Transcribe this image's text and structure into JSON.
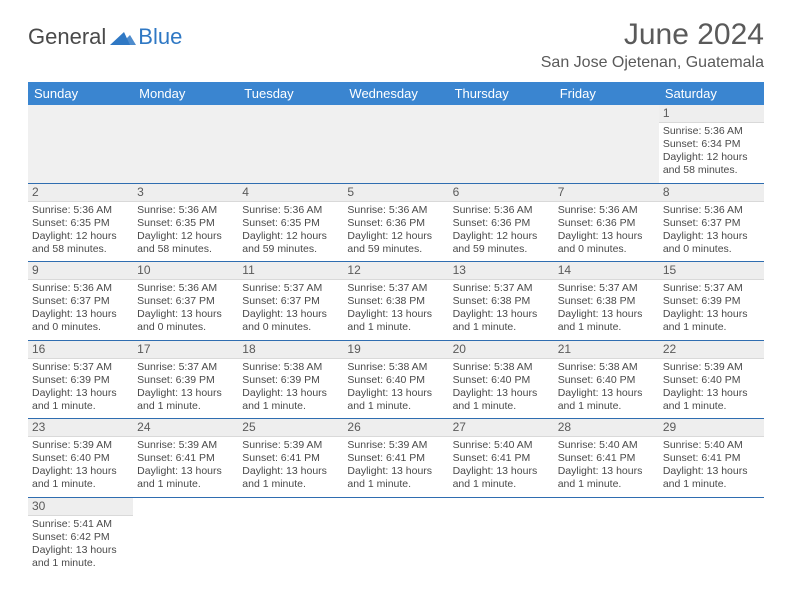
{
  "logo": {
    "text1": "General",
    "text2": "Blue"
  },
  "title": "June 2024",
  "location": "San Jose Ojetenan, Guatemala",
  "colors": {
    "header_bg": "#3a85d0",
    "header_text": "#ffffff",
    "daynum_bg": "#eeeeee",
    "row_divider": "#2f6db0",
    "text": "#4a4a4a",
    "title_text": "#5a5a5a"
  },
  "weekdays": [
    "Sunday",
    "Monday",
    "Tuesday",
    "Wednesday",
    "Thursday",
    "Friday",
    "Saturday"
  ],
  "weeks": [
    [
      null,
      null,
      null,
      null,
      null,
      null,
      {
        "n": "1",
        "sr": "5:36 AM",
        "ss": "6:34 PM",
        "dl": "12 hours and 58 minutes."
      }
    ],
    [
      {
        "n": "2",
        "sr": "5:36 AM",
        "ss": "6:35 PM",
        "dl": "12 hours and 58 minutes."
      },
      {
        "n": "3",
        "sr": "5:36 AM",
        "ss": "6:35 PM",
        "dl": "12 hours and 58 minutes."
      },
      {
        "n": "4",
        "sr": "5:36 AM",
        "ss": "6:35 PM",
        "dl": "12 hours and 59 minutes."
      },
      {
        "n": "5",
        "sr": "5:36 AM",
        "ss": "6:36 PM",
        "dl": "12 hours and 59 minutes."
      },
      {
        "n": "6",
        "sr": "5:36 AM",
        "ss": "6:36 PM",
        "dl": "12 hours and 59 minutes."
      },
      {
        "n": "7",
        "sr": "5:36 AM",
        "ss": "6:36 PM",
        "dl": "13 hours and 0 minutes."
      },
      {
        "n": "8",
        "sr": "5:36 AM",
        "ss": "6:37 PM",
        "dl": "13 hours and 0 minutes."
      }
    ],
    [
      {
        "n": "9",
        "sr": "5:36 AM",
        "ss": "6:37 PM",
        "dl": "13 hours and 0 minutes."
      },
      {
        "n": "10",
        "sr": "5:36 AM",
        "ss": "6:37 PM",
        "dl": "13 hours and 0 minutes."
      },
      {
        "n": "11",
        "sr": "5:37 AM",
        "ss": "6:37 PM",
        "dl": "13 hours and 0 minutes."
      },
      {
        "n": "12",
        "sr": "5:37 AM",
        "ss": "6:38 PM",
        "dl": "13 hours and 1 minute."
      },
      {
        "n": "13",
        "sr": "5:37 AM",
        "ss": "6:38 PM",
        "dl": "13 hours and 1 minute."
      },
      {
        "n": "14",
        "sr": "5:37 AM",
        "ss": "6:38 PM",
        "dl": "13 hours and 1 minute."
      },
      {
        "n": "15",
        "sr": "5:37 AM",
        "ss": "6:39 PM",
        "dl": "13 hours and 1 minute."
      }
    ],
    [
      {
        "n": "16",
        "sr": "5:37 AM",
        "ss": "6:39 PM",
        "dl": "13 hours and 1 minute."
      },
      {
        "n": "17",
        "sr": "5:37 AM",
        "ss": "6:39 PM",
        "dl": "13 hours and 1 minute."
      },
      {
        "n": "18",
        "sr": "5:38 AM",
        "ss": "6:39 PM",
        "dl": "13 hours and 1 minute."
      },
      {
        "n": "19",
        "sr": "5:38 AM",
        "ss": "6:40 PM",
        "dl": "13 hours and 1 minute."
      },
      {
        "n": "20",
        "sr": "5:38 AM",
        "ss": "6:40 PM",
        "dl": "13 hours and 1 minute."
      },
      {
        "n": "21",
        "sr": "5:38 AM",
        "ss": "6:40 PM",
        "dl": "13 hours and 1 minute."
      },
      {
        "n": "22",
        "sr": "5:39 AM",
        "ss": "6:40 PM",
        "dl": "13 hours and 1 minute."
      }
    ],
    [
      {
        "n": "23",
        "sr": "5:39 AM",
        "ss": "6:40 PM",
        "dl": "13 hours and 1 minute."
      },
      {
        "n": "24",
        "sr": "5:39 AM",
        "ss": "6:41 PM",
        "dl": "13 hours and 1 minute."
      },
      {
        "n": "25",
        "sr": "5:39 AM",
        "ss": "6:41 PM",
        "dl": "13 hours and 1 minute."
      },
      {
        "n": "26",
        "sr": "5:39 AM",
        "ss": "6:41 PM",
        "dl": "13 hours and 1 minute."
      },
      {
        "n": "27",
        "sr": "5:40 AM",
        "ss": "6:41 PM",
        "dl": "13 hours and 1 minute."
      },
      {
        "n": "28",
        "sr": "5:40 AM",
        "ss": "6:41 PM",
        "dl": "13 hours and 1 minute."
      },
      {
        "n": "29",
        "sr": "5:40 AM",
        "ss": "6:41 PM",
        "dl": "13 hours and 1 minute."
      }
    ],
    [
      {
        "n": "30",
        "sr": "5:41 AM",
        "ss": "6:42 PM",
        "dl": "13 hours and 1 minute."
      },
      null,
      null,
      null,
      null,
      null,
      null
    ]
  ],
  "labels": {
    "sunrise": "Sunrise:",
    "sunset": "Sunset:",
    "daylight": "Daylight:"
  }
}
